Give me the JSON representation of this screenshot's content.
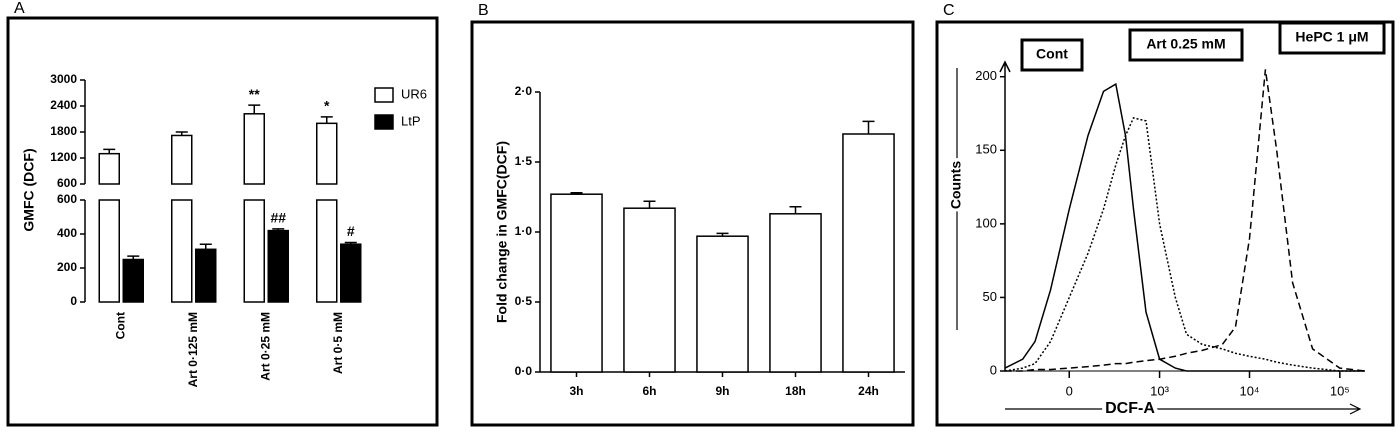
{
  "chart_data": [
    {
      "type": "bar",
      "panel_label": "A",
      "y_label": "GMFC (DCF)",
      "categories": [
        "Cont",
        "Art 0·125 mM",
        "Art 0·25 mM",
        "Art 0·5 mM"
      ],
      "series": [
        {
          "name": "UR6",
          "color": "#ffffff",
          "values": [
            1300,
            1720,
            2220,
            2000
          ],
          "errors": [
            100,
            80,
            200,
            150
          ],
          "markers": [
            null,
            null,
            "**",
            "*"
          ]
        },
        {
          "name": "LtP",
          "color": "#000000",
          "values": [
            250,
            310,
            420,
            340
          ],
          "errors": [
            20,
            30,
            10,
            10
          ],
          "markers": [
            null,
            null,
            "##",
            "#"
          ]
        }
      ],
      "ylim": [
        0,
        600
      ],
      "yticks": [
        0,
        200,
        400,
        600
      ],
      "ylim_upper": [
        600,
        3000
      ],
      "yticks_upper": [
        600,
        1200,
        1800,
        2400,
        3000
      ]
    },
    {
      "type": "bar",
      "panel_label": "B",
      "y_label": "Fold change in GMFC(DCF)",
      "categories": [
        "3h",
        "6h",
        "9h",
        "18h",
        "24h"
      ],
      "values": [
        1.27,
        1.17,
        0.97,
        1.13,
        1.7
      ],
      "errors": [
        0.01,
        0.05,
        0.02,
        0.05,
        0.09
      ],
      "color": "#ffffff",
      "ylim": [
        0,
        2
      ],
      "yticks": [
        {
          "value": 0,
          "label": "0·0"
        },
        {
          "value": 0.5,
          "label": "0·5"
        },
        {
          "value": 1,
          "label": "1·0"
        },
        {
          "value": 1.5,
          "label": "1·5"
        },
        {
          "value": 2,
          "label": "2·0"
        }
      ]
    },
    {
      "type": "line",
      "panel_label": "C",
      "x_label": "DCF-A",
      "y_label": "Counts",
      "xscale": "biexponential",
      "x": [
        -500,
        -300,
        -200,
        -100,
        0,
        100,
        200,
        300,
        400,
        500,
        700,
        1000,
        1500,
        2000,
        3000,
        5000,
        7000,
        10000,
        15000,
        20000,
        30000,
        50000,
        100000,
        190000
      ],
      "series": [
        {
          "name": "Cont",
          "color": "#000000",
          "dash": "solid",
          "values": [
            2,
            8,
            20,
            55,
            110,
            160,
            190,
            195,
            160,
            110,
            40,
            8,
            2,
            0,
            0,
            0,
            0,
            0,
            0,
            0,
            0,
            0,
            0,
            0
          ]
        },
        {
          "name": "Art 0.25 mM",
          "color": "#000000",
          "dash": "dotted",
          "values": [
            0,
            2,
            5,
            20,
            50,
            80,
            110,
            140,
            160,
            172,
            170,
            100,
            50,
            25,
            18,
            15,
            12,
            10,
            8,
            6,
            4,
            2,
            0,
            0
          ]
        },
        {
          "name": "HePC 1 μM",
          "color": "#000000",
          "dash": "dashed",
          "values": [
            0,
            0,
            1,
            1,
            2,
            3,
            4,
            5,
            5,
            6,
            7,
            8,
            10,
            12,
            14,
            18,
            30,
            90,
            205,
            150,
            60,
            15,
            2,
            0
          ]
        }
      ],
      "xlim": [
        -500,
        190000
      ],
      "xticks": [
        0,
        {
          "value": 1000,
          "label": "10³"
        },
        {
          "value": 10000,
          "label": "10⁴"
        },
        {
          "value": 100000,
          "label": "10⁵"
        }
      ],
      "ylim": [
        0,
        210
      ],
      "yticks": [
        0,
        50,
        100,
        150,
        200
      ]
    }
  ]
}
